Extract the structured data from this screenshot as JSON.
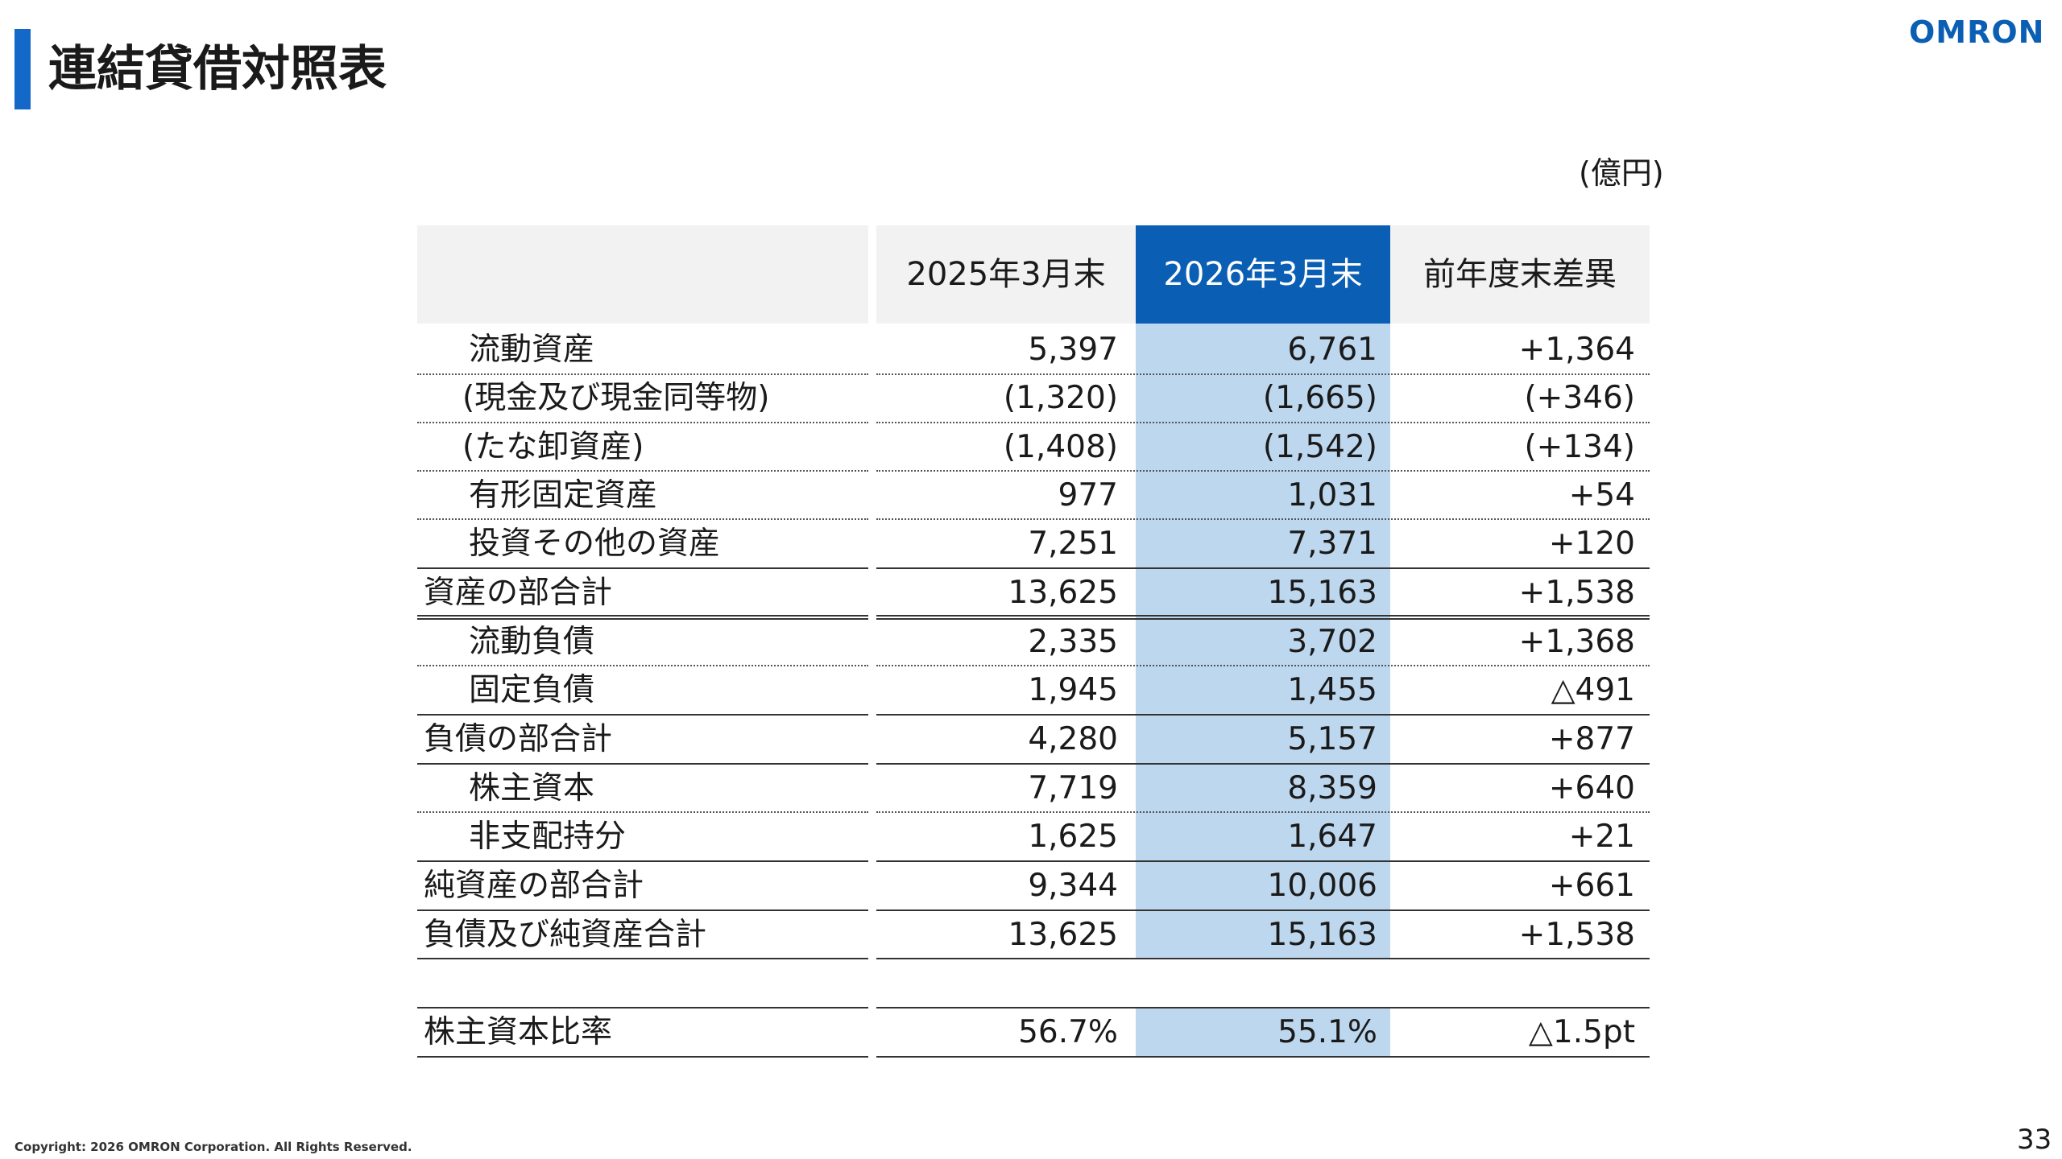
{
  "title": "連結貸借対照表",
  "logo": "OMRON",
  "unit": "(億円)",
  "columns": [
    "",
    "2025年3月末",
    "2026年3月末",
    "前年度末差異"
  ],
  "rows": [
    {
      "label": "流動資産",
      "v1": "5,397",
      "v2": "6,761",
      "v3": "+1,364"
    },
    {
      "label": "(現金及び現金同等物)",
      "v1": "(1,320)",
      "v2": "(1,665)",
      "v3": "(+346)"
    },
    {
      "label": "(たな卸資産)",
      "v1": "(1,408)",
      "v2": "(1,542)",
      "v3": "(+134)"
    },
    {
      "label": "有形固定資産",
      "v1": "977",
      "v2": "1,031",
      "v3": "+54"
    },
    {
      "label": "投資その他の資産",
      "v1": "7,251",
      "v2": "7,371",
      "v3": "+120"
    },
    {
      "label": "資産の部合計",
      "v1": "13,625",
      "v2": "15,163",
      "v3": "+1,538"
    },
    {
      "label": "流動負債",
      "v1": "2,335",
      "v2": "3,702",
      "v3": "+1,368"
    },
    {
      "label": "固定負債",
      "v1": "1,945",
      "v2": "1,455",
      "v3": "△491"
    },
    {
      "label": "負債の部合計",
      "v1": "4,280",
      "v2": "5,157",
      "v3": "+877"
    },
    {
      "label": "株主資本",
      "v1": "7,719",
      "v2": "8,359",
      "v3": "+640"
    },
    {
      "label": "非支配持分",
      "v1": "1,625",
      "v2": "1,647",
      "v3": "+21"
    },
    {
      "label": "純資産の部合計",
      "v1": "9,344",
      "v2": "10,006",
      "v3": "+661"
    },
    {
      "label": "負債及び純資産合計",
      "v1": "13,625",
      "v2": "15,163",
      "v3": "+1,538"
    }
  ],
  "ratio": {
    "label": "株主資本比率",
    "v1": "56.7%",
    "v2": "55.1%",
    "v3": "△1.5pt"
  },
  "copyright": "Copyright: 2026 OMRON Corporation. All Rights Reserved.",
  "page_number": "33",
  "colors": {
    "accent": "#0a5fb4",
    "highlight": "#bdd7ee",
    "header_bg": "#f2f2f2"
  }
}
